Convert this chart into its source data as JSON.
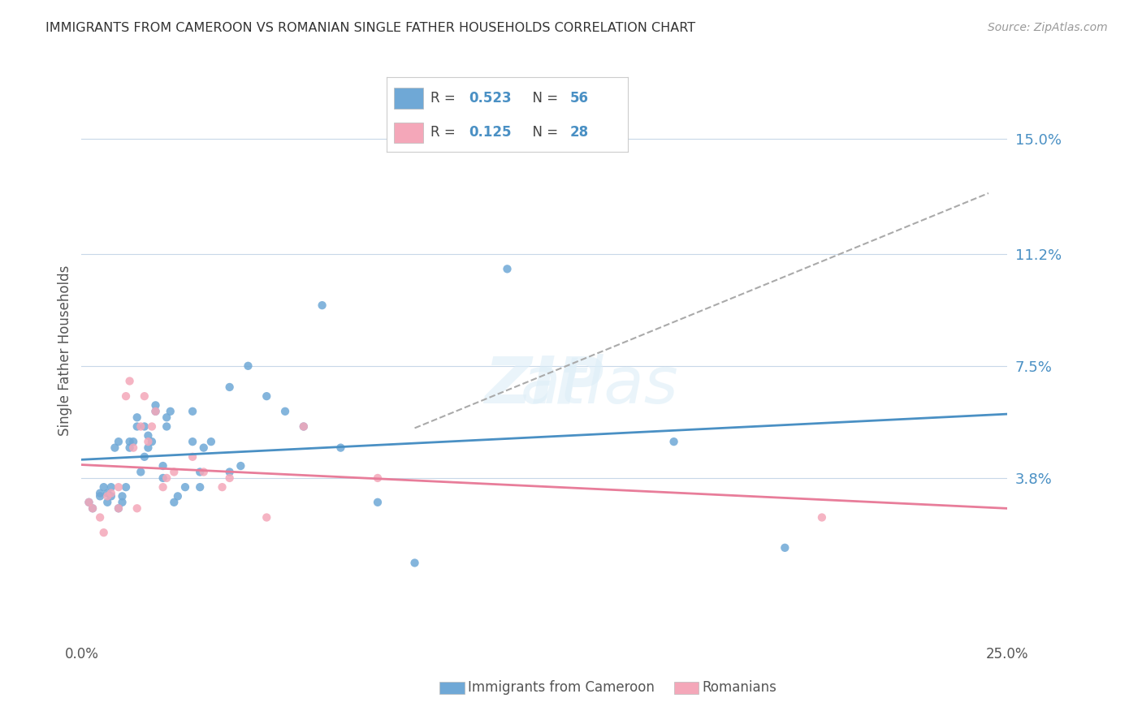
{
  "title": "IMMIGRANTS FROM CAMEROON VS ROMANIAN SINGLE FATHER HOUSEHOLDS CORRELATION CHART",
  "source": "Source: ZipAtlas.com",
  "ylabel": "Single Father Households",
  "ytick_labels": [
    "15.0%",
    "11.2%",
    "7.5%",
    "3.8%"
  ],
  "ytick_values": [
    0.15,
    0.112,
    0.075,
    0.038
  ],
  "xlim": [
    0.0,
    0.25
  ],
  "ylim": [
    -0.015,
    0.175
  ],
  "legend1_R": "0.523",
  "legend1_N": "56",
  "legend2_R": "0.125",
  "legend2_N": "28",
  "color_blue": "#6fa8d6",
  "color_pink": "#f4a7b9",
  "color_line_blue": "#4a90c4",
  "color_line_pink": "#e87d9a",
  "color_line_dashed": "#aaaaaa",
  "blue_scatter_x": [
    0.002,
    0.003,
    0.005,
    0.005,
    0.006,
    0.007,
    0.007,
    0.008,
    0.008,
    0.009,
    0.01,
    0.01,
    0.011,
    0.011,
    0.012,
    0.013,
    0.013,
    0.014,
    0.015,
    0.015,
    0.016,
    0.017,
    0.017,
    0.018,
    0.018,
    0.019,
    0.02,
    0.02,
    0.022,
    0.022,
    0.023,
    0.023,
    0.024,
    0.025,
    0.026,
    0.028,
    0.03,
    0.03,
    0.032,
    0.032,
    0.033,
    0.035,
    0.04,
    0.04,
    0.043,
    0.045,
    0.05,
    0.055,
    0.06,
    0.065,
    0.07,
    0.08,
    0.09,
    0.115,
    0.16,
    0.19
  ],
  "blue_scatter_y": [
    0.03,
    0.028,
    0.032,
    0.033,
    0.035,
    0.03,
    0.033,
    0.032,
    0.035,
    0.048,
    0.05,
    0.028,
    0.03,
    0.032,
    0.035,
    0.048,
    0.05,
    0.05,
    0.055,
    0.058,
    0.04,
    0.045,
    0.055,
    0.048,
    0.052,
    0.05,
    0.06,
    0.062,
    0.038,
    0.042,
    0.055,
    0.058,
    0.06,
    0.03,
    0.032,
    0.035,
    0.05,
    0.06,
    0.035,
    0.04,
    0.048,
    0.05,
    0.068,
    0.04,
    0.042,
    0.075,
    0.065,
    0.06,
    0.055,
    0.095,
    0.048,
    0.03,
    0.01,
    0.107,
    0.05,
    0.015
  ],
  "pink_scatter_x": [
    0.002,
    0.003,
    0.005,
    0.006,
    0.007,
    0.008,
    0.01,
    0.01,
    0.012,
    0.013,
    0.014,
    0.015,
    0.016,
    0.017,
    0.018,
    0.019,
    0.02,
    0.022,
    0.023,
    0.025,
    0.03,
    0.033,
    0.038,
    0.04,
    0.05,
    0.06,
    0.08,
    0.2
  ],
  "pink_scatter_y": [
    0.03,
    0.028,
    0.025,
    0.02,
    0.032,
    0.033,
    0.028,
    0.035,
    0.065,
    0.07,
    0.048,
    0.028,
    0.055,
    0.065,
    0.05,
    0.055,
    0.06,
    0.035,
    0.038,
    0.04,
    0.045,
    0.04,
    0.035,
    0.038,
    0.025,
    0.055,
    0.038,
    0.025
  ]
}
